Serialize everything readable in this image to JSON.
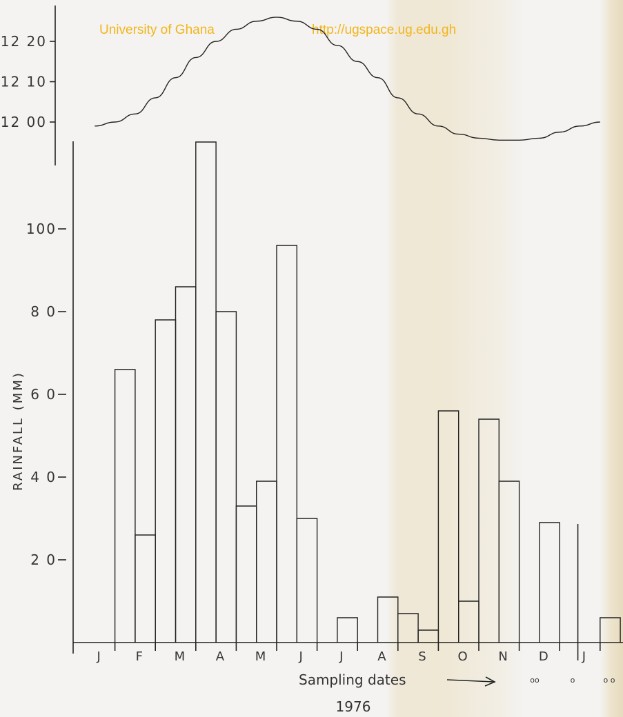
{
  "watermark": {
    "left": "University of Ghana",
    "right": "http://ugspace.ug.edu.gh"
  },
  "colors": {
    "ink": "#222222",
    "watermark": "#f2b51a"
  },
  "chart_data": [
    {
      "type": "line",
      "title": "",
      "xlabel": "",
      "ylabel": "",
      "ylim": [
        11.9,
        12.25
      ],
      "tick_values": [
        12.0,
        12.1,
        12.2
      ],
      "tick_labels": [
        "12 00",
        "12 10",
        "12 20"
      ],
      "x": [
        0.5,
        1.0,
        1.5,
        2.0,
        2.5,
        3.0,
        3.5,
        4.0,
        4.5,
        5.0,
        5.5,
        6.0,
        6.5,
        7.0,
        7.5,
        8.0,
        8.5,
        9.0,
        9.5,
        10.0,
        10.5,
        11.0,
        11.5,
        12.0,
        12.5,
        13.0
      ],
      "values": [
        11.99,
        12.0,
        12.02,
        12.06,
        12.11,
        12.16,
        12.2,
        12.23,
        12.25,
        12.26,
        12.25,
        12.23,
        12.19,
        12.15,
        12.11,
        12.06,
        12.02,
        11.99,
        11.97,
        11.96,
        11.955,
        11.955,
        11.96,
        11.975,
        11.99,
        12.0
      ]
    },
    {
      "type": "bar",
      "title": "",
      "xlabel": "Sampling dates",
      "ylabel": "RAINFALL  (MM)",
      "ylim": [
        0,
        121
      ],
      "tick_values": [
        20,
        40,
        60,
        80,
        100
      ],
      "tick_labels": [
        "2 0",
        "4 0",
        "6 0",
        "8 0",
        "100"
      ],
      "month_labels": [
        "J",
        "F",
        "M",
        "A",
        "M",
        "J",
        "J",
        "A",
        "S",
        "O",
        "N",
        "D",
        "J"
      ],
      "year_label": "1976",
      "x_start": [
        0,
        1,
        1.5,
        2,
        2.5,
        3,
        3.5,
        4,
        4.5,
        5,
        5.5,
        6,
        6.5,
        7,
        7.5,
        8,
        8.5,
        9,
        9.5,
        10,
        10.5,
        11,
        11.5,
        12,
        12.5,
        13
      ],
      "x_end": [
        1,
        1.5,
        2,
        2.5,
        3,
        3.5,
        4,
        4.5,
        5,
        5.5,
        6,
        6.5,
        7,
        7.5,
        8,
        8.5,
        9,
        9.5,
        10,
        10.5,
        11,
        11.5,
        12,
        12.5,
        13,
        13.5
      ],
      "values": [
        0,
        66,
        26,
        78,
        86,
        121,
        80,
        33,
        39,
        96,
        30,
        0,
        6,
        0,
        11,
        7,
        3,
        56,
        10,
        54,
        39,
        0,
        29,
        0,
        0,
        6
      ],
      "sampling_markers": [
        "oo",
        "o",
        "o o"
      ]
    }
  ]
}
